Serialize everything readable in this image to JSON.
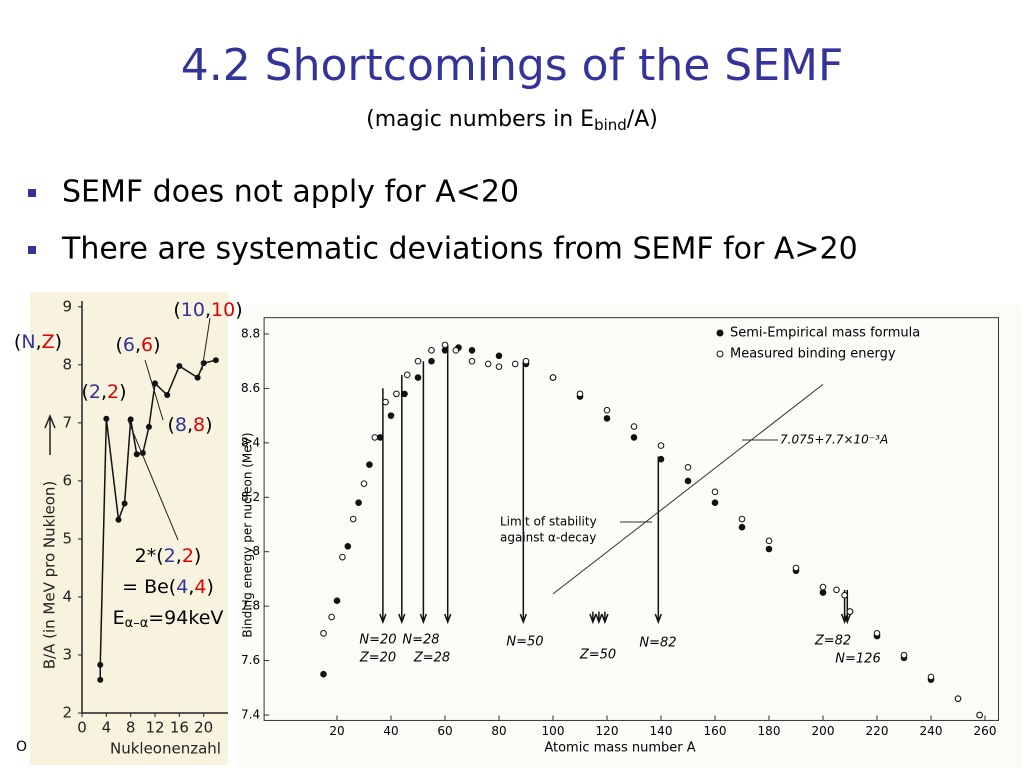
{
  "title": "4.2 Shortcomings of the SEMF",
  "subtitle": [
    "(magic numbers in E",
    "bind",
    "/A)"
  ],
  "bullets": [
    "SEMF does not apply for A<20",
    "There are systematic deviations from SEMF for A>20"
  ],
  "footer": "O",
  "chart_data": [
    {
      "type": "line",
      "xlabel": "Nukleonenzahl",
      "ylabel": "B/A (in MeV pro Nukleon)",
      "xlim": [
        0,
        23.5
      ],
      "ylim": [
        2,
        9.1
      ],
      "xticks": [
        0,
        4,
        8,
        12,
        16,
        20
      ],
      "yticks": [
        2,
        3,
        4,
        5,
        6,
        7,
        8,
        9
      ],
      "series": [
        {
          "color": "#111111",
          "x": [
            3,
            3,
            4,
            6,
            7,
            8,
            9,
            10,
            11,
            12,
            14,
            16,
            19,
            20,
            22
          ],
          "values": [
            2.57,
            2.83,
            7.07,
            5.33,
            5.61,
            7.06,
            6.46,
            6.48,
            6.93,
            7.68,
            7.48,
            7.98,
            7.78,
            8.03,
            8.08
          ]
        }
      ],
      "annotations": [
        [
          "(",
          "10",
          ",",
          "10",
          ")"
        ],
        [
          "(",
          "N",
          ",",
          "Z",
          ")"
        ],
        [
          "(",
          "6",
          ",",
          "6",
          ")"
        ],
        [
          "(",
          "2",
          ",",
          "2",
          ")"
        ],
        [
          "(",
          "8",
          ",",
          "8",
          ")"
        ],
        [
          "2*(",
          "2",
          ",",
          "2",
          ")"
        ],
        [
          "= Be(",
          "4",
          ",",
          "4",
          ")"
        ]
      ],
      "energy_note": [
        "E",
        "α–α",
        "=94keV"
      ]
    },
    {
      "type": "scatter",
      "xlabel": "Atomic mass number A",
      "ylabel": "Binding energy per nucleon (MeV)",
      "xlim": [
        -7,
        265
      ],
      "ylim": [
        7.38,
        8.86
      ],
      "xticks": [
        20,
        40,
        60,
        80,
        100,
        120,
        140,
        160,
        180,
        200,
        220,
        240,
        260
      ],
      "yticks": [
        7.4,
        7.6,
        7.8,
        8.0,
        8.2,
        8.4,
        8.6,
        8.8
      ],
      "series": [
        {
          "name": "Semi-Empirical mass formula",
          "color": "#111111",
          "marker": "filled",
          "x": [
            15,
            20,
            24,
            28,
            32,
            36,
            40,
            45,
            50,
            55,
            60,
            65,
            70,
            80,
            90,
            100,
            110,
            120,
            130,
            140,
            150,
            160,
            170,
            180,
            190,
            200,
            210,
            220,
            230,
            240,
            250,
            258
          ],
          "values": [
            7.55,
            7.82,
            8.02,
            8.18,
            8.32,
            8.42,
            8.5,
            8.58,
            8.64,
            8.7,
            8.74,
            8.75,
            8.74,
            8.72,
            8.69,
            8.64,
            8.57,
            8.49,
            8.42,
            8.34,
            8.26,
            8.18,
            8.09,
            8.01,
            7.93,
            7.85,
            7.78,
            7.69,
            7.61,
            7.53,
            7.46,
            7.4
          ]
        },
        {
          "name": "Measured binding energy",
          "color": "#111111",
          "marker": "open",
          "x": [
            15,
            18,
            22,
            26,
            30,
            34,
            38,
            42,
            46,
            50,
            55,
            60,
            64,
            70,
            76,
            80,
            86,
            90,
            100,
            110,
            120,
            130,
            140,
            150,
            160,
            170,
            180,
            190,
            200,
            205,
            208,
            210,
            220,
            230,
            240,
            250,
            258
          ],
          "values": [
            7.7,
            7.76,
            7.98,
            8.12,
            8.25,
            8.42,
            8.55,
            8.58,
            8.65,
            8.7,
            8.74,
            8.76,
            8.74,
            8.7,
            8.69,
            8.68,
            8.69,
            8.7,
            8.64,
            8.58,
            8.52,
            8.46,
            8.39,
            8.31,
            8.22,
            8.12,
            8.04,
            7.94,
            7.87,
            7.86,
            7.84,
            7.78,
            7.7,
            7.62,
            7.54,
            7.46,
            7.4
          ]
        }
      ],
      "fit_line": {
        "label": "7.075+7.7×10⁻³A",
        "intercept": 7.075,
        "slope": 0.0077,
        "x": [
          100,
          200
        ]
      },
      "stability_note": [
        "Limit of stability",
        "against α-decay"
      ],
      "magic": [
        {
          "label": "N=20",
          "A": 37,
          "top": 8.6
        },
        {
          "label": "Z=20",
          "A": 44,
          "top": 8.65
        },
        {
          "label": "N=28",
          "A": 52,
          "top": 8.7
        },
        {
          "label": "Z=28",
          "A": 61,
          "top": 8.76
        },
        {
          "label": "N=50",
          "A": 89,
          "top": 8.7
        },
        {
          "label": "Z=50",
          "A": 117,
          "top": 7.78
        },
        {
          "label": "N=82",
          "A": 139,
          "top": 8.35
        },
        {
          "label": "Z=82",
          "A": 208,
          "top": 7.86
        },
        {
          "label": "N=126",
          "A": 209,
          "top": 7.86
        }
      ]
    }
  ]
}
